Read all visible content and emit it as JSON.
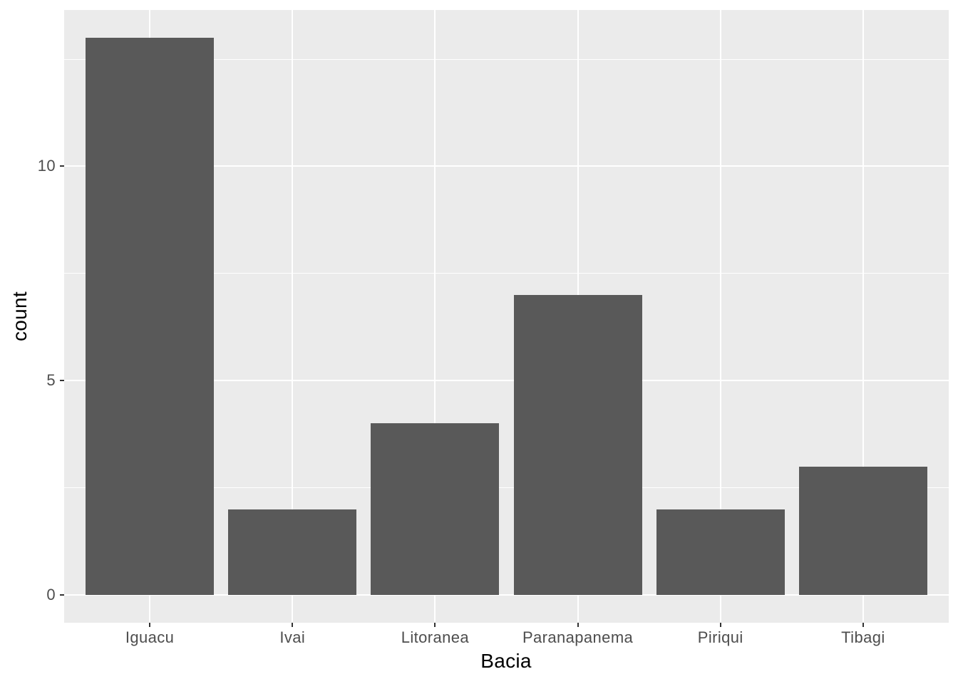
{
  "chart_data": {
    "type": "bar",
    "title": "",
    "categories": [
      "Iguacu",
      "Ivai",
      "Litoranea",
      "Paranapanema",
      "Piriqui",
      "Tibagi"
    ],
    "values": [
      13,
      2,
      4,
      7,
      2,
      3
    ],
    "xlabel": "Bacia",
    "ylabel": "count",
    "y_ticks": [
      0,
      5,
      10
    ],
    "y_minor_gridlines": [
      2.5,
      7.5,
      12.5
    ],
    "ylim": [
      -0.65,
      13.65
    ],
    "legend": "none",
    "grid": "white major and minor horizontal lines, white major vertical lines at category centers, on gray panel",
    "colors": {
      "bar_fill": "#595959",
      "panel_background": "#EBEBEB",
      "gridline": "#FFFFFF",
      "tick_label": "#4D4D4D",
      "tick_mark": "#333333",
      "axis_title": "#000000",
      "page_background": "#FFFFFF"
    }
  }
}
